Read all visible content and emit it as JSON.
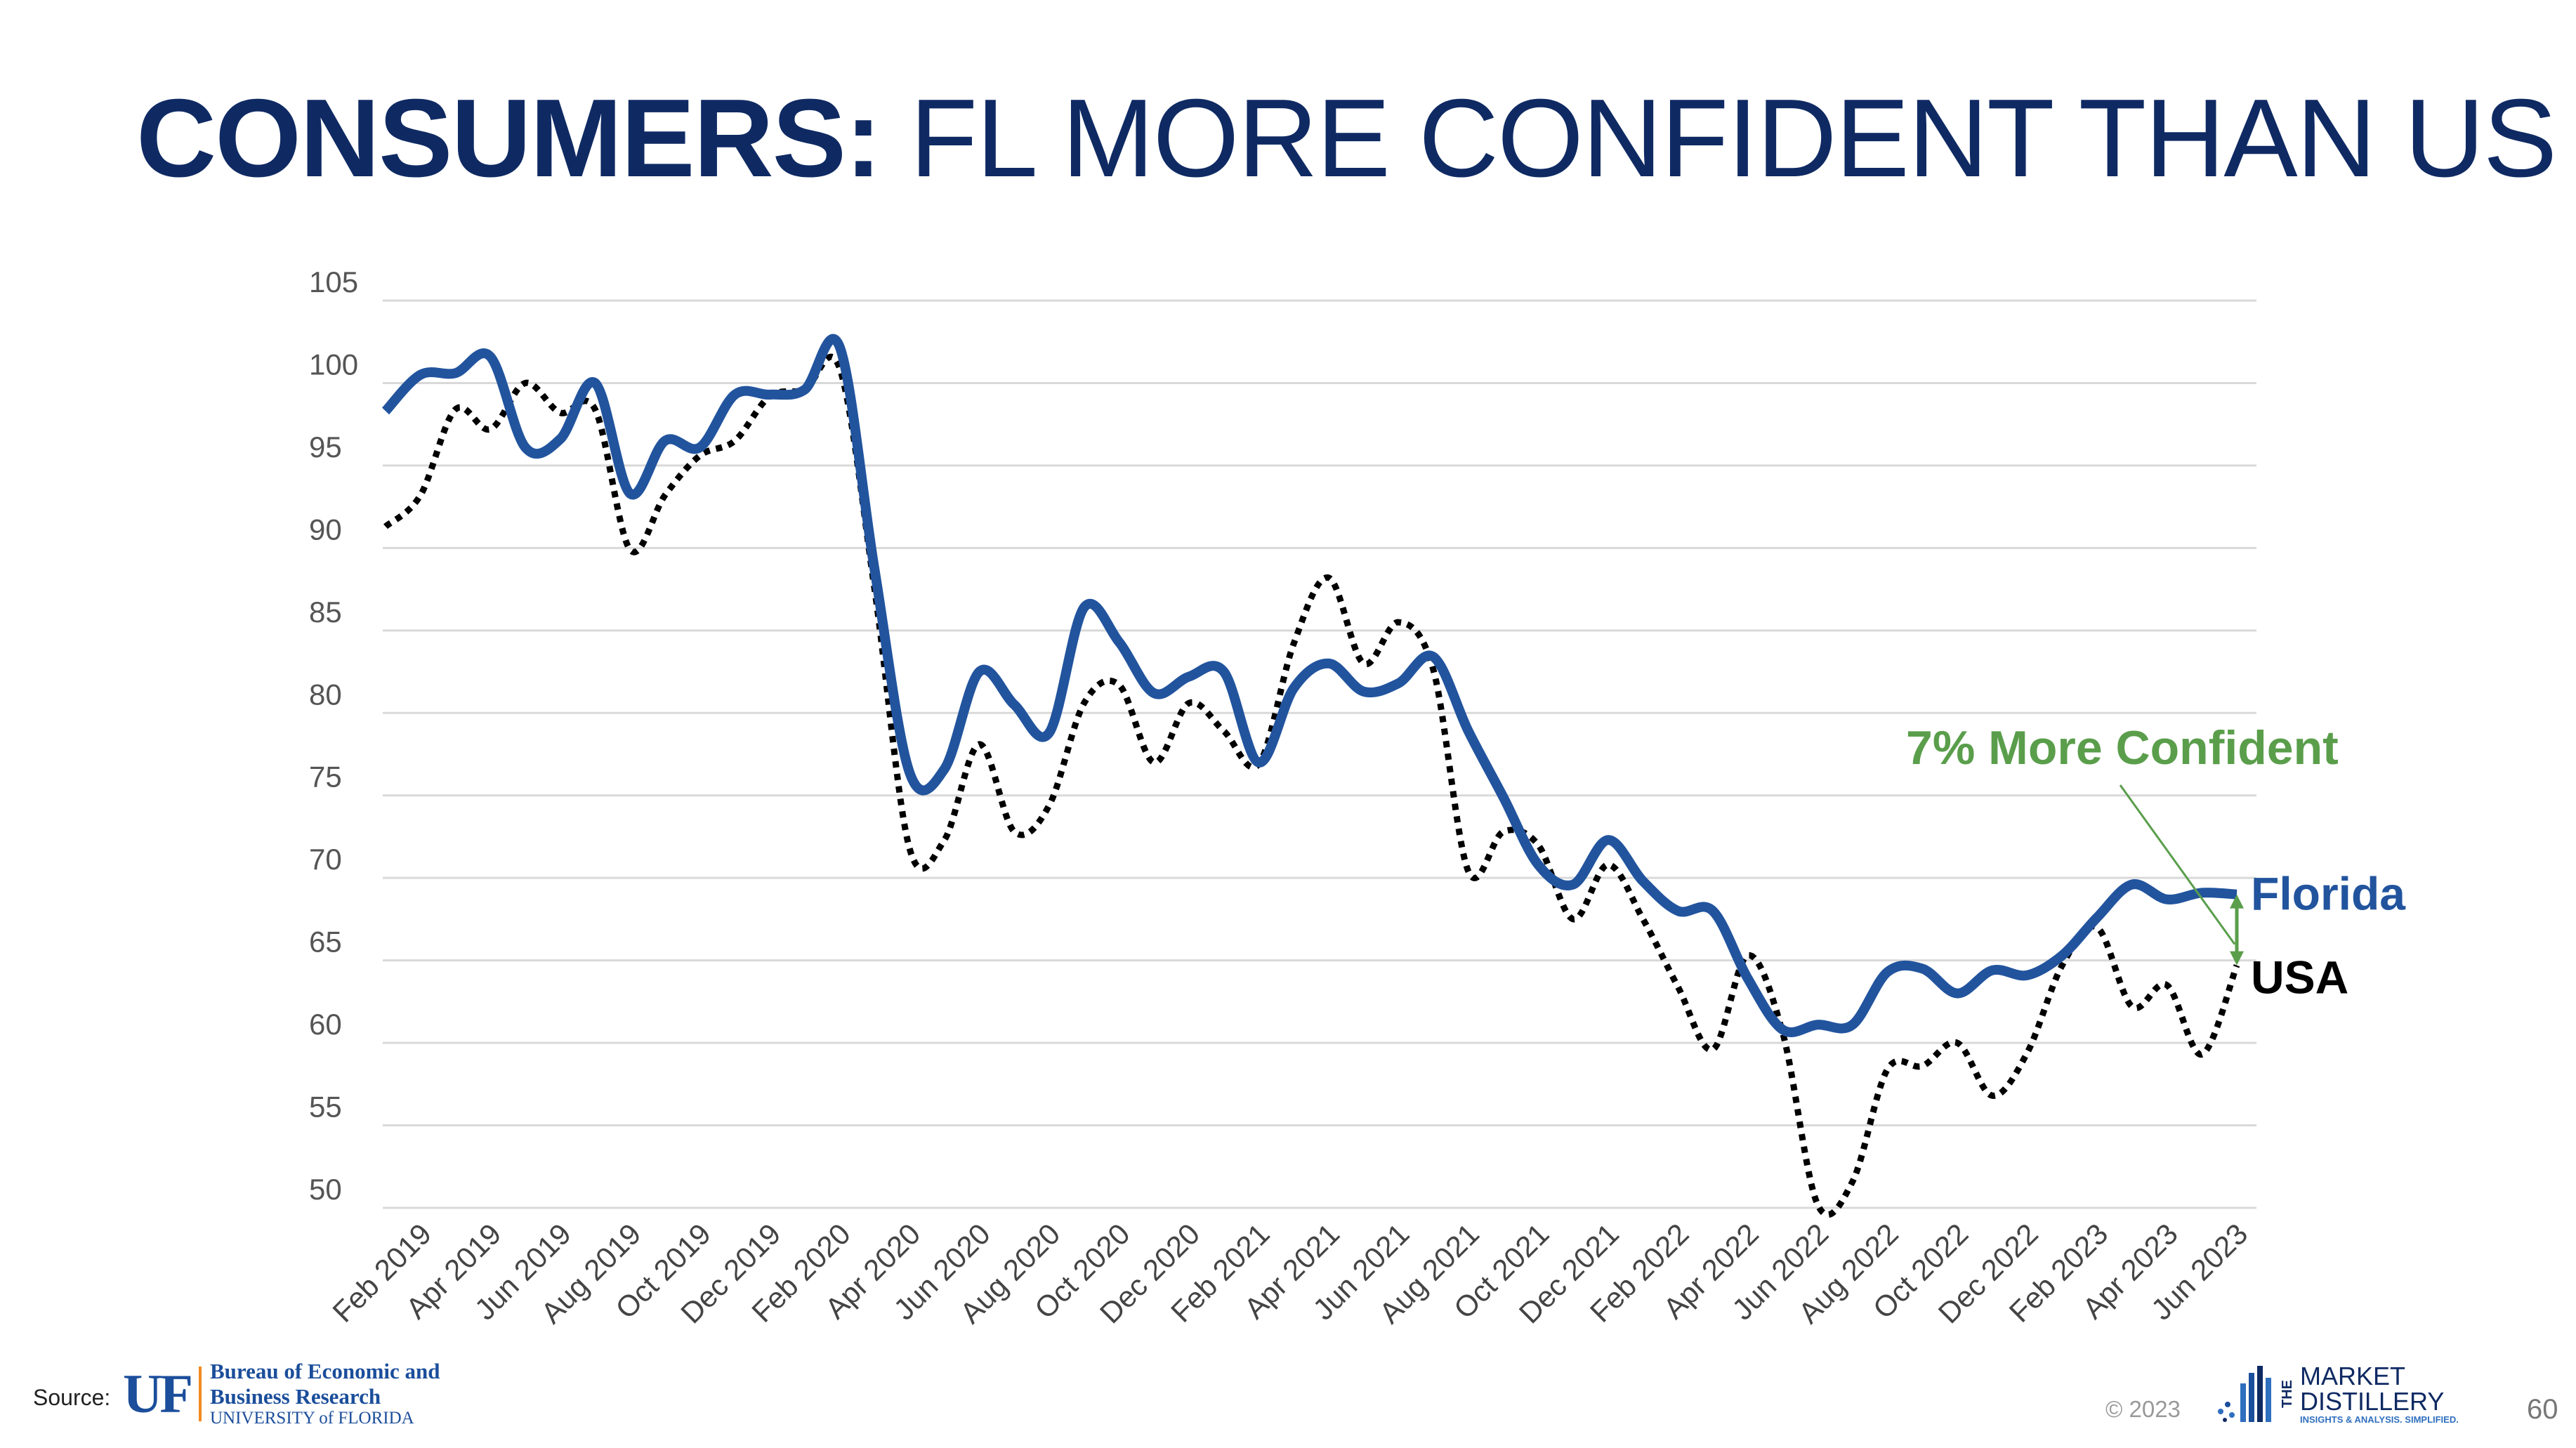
{
  "title": {
    "bold": "CONSUMERS:",
    "rest": " FL MORE CONFIDENT THAN US"
  },
  "chart_data": {
    "type": "line",
    "x": [
      "Jan 2019",
      "Feb 2019",
      "Mar 2019",
      "Apr 2019",
      "May 2019",
      "Jun 2019",
      "Jul 2019",
      "Aug 2019",
      "Sep 2019",
      "Oct 2019",
      "Nov 2019",
      "Dec 2019",
      "Jan 2020",
      "Feb 2020",
      "Mar 2020",
      "Apr 2020",
      "May 2020",
      "Jun 2020",
      "Jul 2020",
      "Aug 2020",
      "Sep 2020",
      "Oct 2020",
      "Nov 2020",
      "Dec 2020",
      "Jan 2021",
      "Feb 2021",
      "Mar 2021",
      "Apr 2021",
      "May 2021",
      "Jun 2021",
      "Jul 2021",
      "Aug 2021",
      "Sep 2021",
      "Oct 2021",
      "Nov 2021",
      "Dec 2021",
      "Jan 2022",
      "Feb 2022",
      "Mar 2022",
      "Apr 2022",
      "May 2022",
      "Jun 2022",
      "Jul 2022",
      "Aug 2022",
      "Sep 2022",
      "Oct 2022",
      "Nov 2022",
      "Dec 2022",
      "Jan 2023",
      "Feb 2023",
      "Mar 2023",
      "Apr 2023",
      "May 2023",
      "Jun 2023"
    ],
    "x_tick_labels": [
      "Feb 2019",
      "Apr 2019",
      "Jun 2019",
      "Aug 2019",
      "Oct 2019",
      "Dec 2019",
      "Feb 2020",
      "Apr 2020",
      "Jun 2020",
      "Aug 2020",
      "Oct 2020",
      "Dec 2020",
      "Feb 2021",
      "Apr 2021",
      "Jun 2021",
      "Aug 2021",
      "Oct 2021",
      "Dec 2021",
      "Feb 2022",
      "Apr 2022",
      "Jun 2022",
      "Aug 2022",
      "Oct 2022",
      "Dec 2022",
      "Feb 2023",
      "Apr 2023",
      "Jun 2023"
    ],
    "y_ticks": [
      50,
      55,
      60,
      65,
      70,
      75,
      80,
      85,
      90,
      95,
      100,
      105
    ],
    "ylim": [
      50,
      105
    ],
    "grid": true,
    "series": [
      {
        "name": "Florida",
        "color": "#22549e",
        "style": "solid",
        "values": [
          98.3,
          100.5,
          100.6,
          101.6,
          96.1,
          96.6,
          100.0,
          93.3,
          96.5,
          96.1,
          99.3,
          99.3,
          99.6,
          102.2,
          88.7,
          76.4,
          76.6,
          82.5,
          80.5,
          78.8,
          86.4,
          84.3,
          81.2,
          82.2,
          82.5,
          77.0,
          81.5,
          83.0,
          81.3,
          81.8,
          83.4,
          78.9,
          74.9,
          70.8,
          69.6,
          72.3,
          69.8,
          68.0,
          68.0,
          63.9,
          60.8,
          61.1,
          61.1,
          64.3,
          64.5,
          63.0,
          64.4,
          64.1,
          65.3,
          67.6,
          69.6,
          68.7,
          69.1,
          69.0
        ]
      },
      {
        "name": "USA",
        "color": "#000000",
        "style": "dotted",
        "values": [
          91.3,
          93.2,
          98.4,
          97.2,
          100.0,
          98.2,
          98.4,
          89.9,
          93.2,
          95.6,
          96.5,
          99.2,
          99.6,
          100.9,
          87.5,
          71.8,
          72.3,
          78.1,
          72.8,
          74.4,
          80.6,
          81.7,
          77.0,
          80.6,
          78.9,
          76.9,
          84.2,
          88.2,
          83.0,
          85.5,
          82.6,
          70.4,
          72.8,
          72.0,
          67.5,
          70.8,
          67.5,
          63.4,
          59.6,
          65.3,
          60.6,
          50.2,
          51.6,
          58.4,
          58.6,
          60.0,
          56.8,
          59.4,
          64.7,
          67.0,
          62.2,
          63.5,
          59.3,
          64.7
        ]
      }
    ],
    "annotation": {
      "text": "7% More Confident",
      "color": "#5a9e4b"
    }
  },
  "footer": {
    "source_label": "Source:",
    "uf_mark": "UF",
    "uf_line1": "Bureau of Economic and",
    "uf_line2": "Business Research",
    "uf_line3": "UNIVERSITY of FLORIDA",
    "copyright": "© 2023",
    "md_the": "THE",
    "md_line1": "MARKET",
    "md_line2": "DISTILLERY",
    "md_tagline": "INSIGHTS & ANALYSIS. SIMPLIFIED.",
    "page_number": "60"
  }
}
